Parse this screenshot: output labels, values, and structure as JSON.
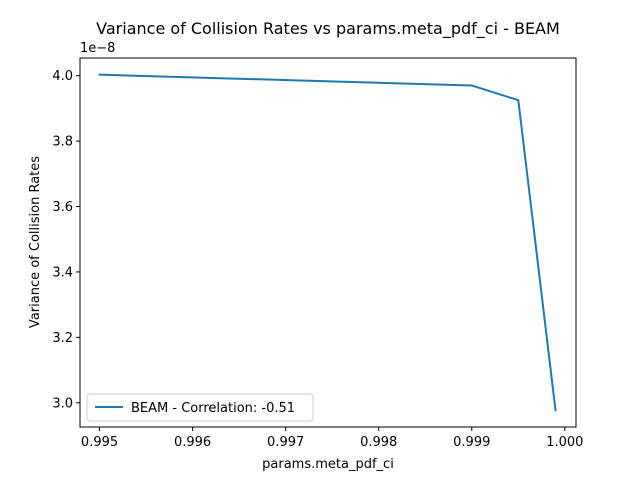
{
  "chart_data": {
    "type": "line",
    "title": "Variance of Collision Rates vs params.meta_pdf_ci - BEAM",
    "xlabel": "params.meta_pdf_ci",
    "ylabel": "Variance of Collision Rates",
    "y_offset_label": "1e−8",
    "xlim": [
      0.99479,
      1.00012
    ],
    "ylim": [
      2.926,
      4.054
    ],
    "x_ticks": [
      0.995,
      0.996,
      0.997,
      0.998,
      0.999,
      1.0
    ],
    "x_tick_labels": [
      "0.995",
      "0.996",
      "0.997",
      "0.998",
      "0.999",
      "1.000"
    ],
    "y_ticks": [
      3.0,
      3.2,
      3.4,
      3.6,
      3.8,
      4.0
    ],
    "y_tick_labels": [
      "3.0",
      "3.2",
      "3.4",
      "3.6",
      "3.8",
      "4.0"
    ],
    "grid": false,
    "legend_position": "lower-left",
    "series": [
      {
        "name": "BEAM - Correlation: -0.51",
        "color": "#1f77b4",
        "x": [
          0.995,
          0.999,
          0.9995,
          0.9999
        ],
        "y": [
          4.003,
          3.97,
          3.925,
          2.977
        ]
      }
    ]
  }
}
